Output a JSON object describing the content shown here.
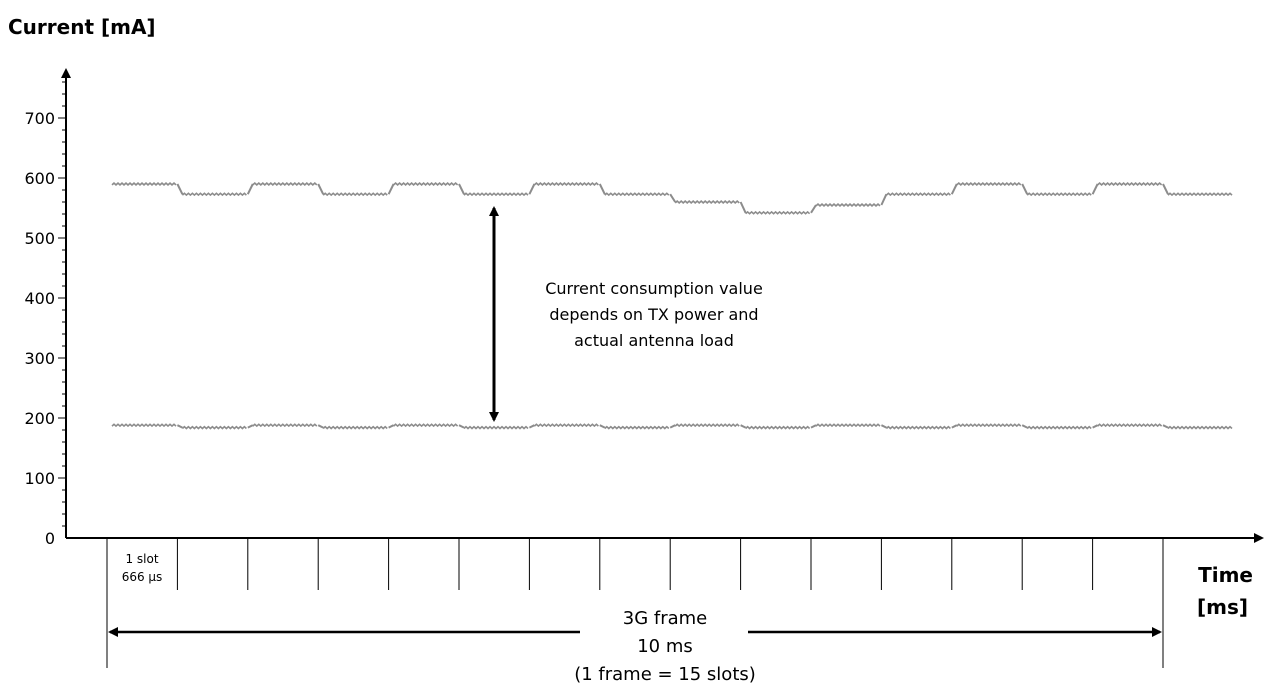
{
  "chart_data": {
    "type": "line",
    "y_axis_title": "Current [mA]",
    "x_axis_title_line1": "Time",
    "x_axis_title_line2": "[ms]",
    "ylim": [
      0,
      780
    ],
    "y_ticks": [
      "0",
      "100",
      "200",
      "300",
      "400",
      "500",
      "600",
      "700"
    ],
    "slots": 15,
    "slot_label_line1": "1 slot",
    "slot_label_line2": "666 µs",
    "series": [
      {
        "color": "#8c8c8c",
        "values": [
          590,
          573,
          590,
          573,
          590,
          573,
          590,
          573,
          560,
          542,
          555,
          573,
          590,
          573,
          590,
          573
        ]
      },
      {
        "color": "#8c8c8c",
        "values": [
          188,
          184,
          188,
          184,
          188,
          184,
          188,
          184,
          188,
          184,
          188,
          184,
          188,
          184,
          188,
          184
        ]
      }
    ],
    "annotation": [
      "Current consumption value",
      "depends on TX power and",
      "actual antenna load"
    ],
    "frame_label": [
      "3G frame",
      "10 ms",
      "(1 frame = 15 slots)"
    ]
  }
}
